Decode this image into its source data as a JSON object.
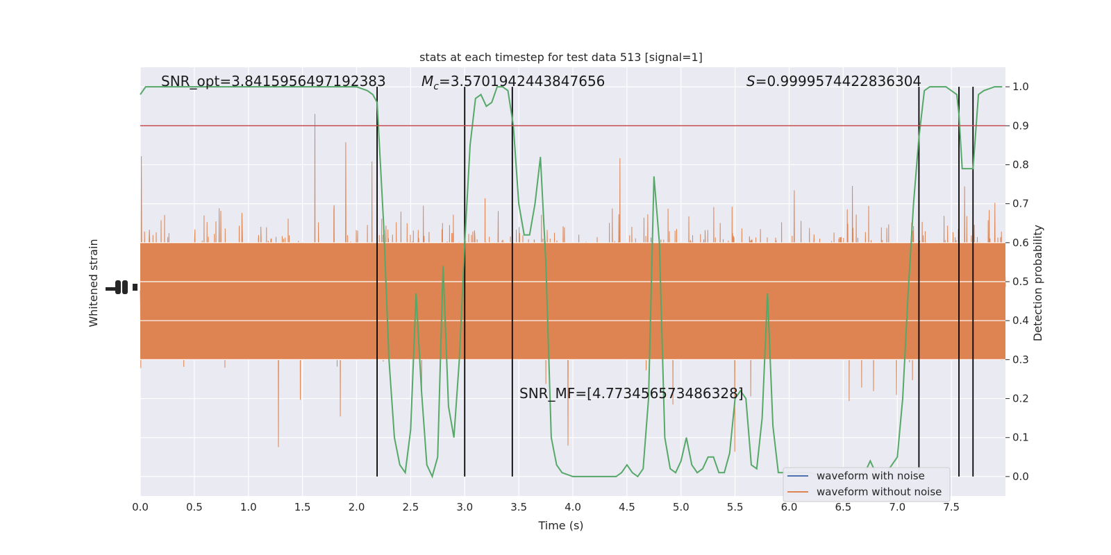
{
  "chart_data": {
    "type": "line",
    "title": "stats at each timestep for test data 513 [signal=1]",
    "xlabel": "Time (s)",
    "ylabel_left": "Whitened strain",
    "ylabel_right": "Detection probability",
    "xlim": [
      0,
      8
    ],
    "ylim_right": [
      -0.05,
      1.05
    ],
    "x_ticks": [
      0.0,
      0.5,
      1.0,
      1.5,
      2.0,
      2.5,
      3.0,
      3.5,
      4.0,
      4.5,
      5.0,
      5.5,
      6.0,
      6.5,
      7.0,
      7.5
    ],
    "x_tick_labels": [
      "0.0",
      "0.5",
      "1.0",
      "1.5",
      "2.0",
      "2.5",
      "3.0",
      "3.5",
      "4.0",
      "4.5",
      "5.0",
      "5.5",
      "6.0",
      "6.5",
      "7.0",
      "7.5"
    ],
    "y_right_ticks": [
      0.0,
      0.1,
      0.2,
      0.3,
      0.4,
      0.5,
      0.6,
      0.7,
      0.8,
      0.9,
      1.0
    ],
    "y_right_tick_labels": [
      "0.0",
      "0.1",
      "0.2",
      "0.3",
      "0.4",
      "0.5",
      "0.6",
      "0.7",
      "0.8",
      "0.9",
      "1.0"
    ],
    "threshold": 0.9,
    "vertical_lines": [
      2.19,
      3.0,
      3.44,
      7.2,
      7.57,
      7.7
    ],
    "annotations": {
      "snr_opt": "SNR_opt=3.8415956497192383",
      "mc_prefix": "M",
      "mc_sub": "c",
      "mc_value": "=3.5701942443847656",
      "s_symbol": "S",
      "s_value": "=0.9999574422836304",
      "snr_mf": "SNR_MF=[4.773456573486328]"
    },
    "series": [
      {
        "name": "waveform with noise",
        "color": "#4c72b0"
      },
      {
        "name": "waveform without noise",
        "color": "#dd8452"
      }
    ],
    "probability": {
      "color": "#55a868",
      "x": [
        0.0,
        0.05,
        0.1,
        0.2,
        0.4,
        0.6,
        0.8,
        1.0,
        1.2,
        1.4,
        1.6,
        1.8,
        2.0,
        2.1,
        2.15,
        2.19,
        2.25,
        2.3,
        2.35,
        2.4,
        2.45,
        2.5,
        2.55,
        2.6,
        2.65,
        2.7,
        2.75,
        2.8,
        2.85,
        2.9,
        2.95,
        3.0,
        3.05,
        3.1,
        3.15,
        3.2,
        3.25,
        3.3,
        3.35,
        3.4,
        3.45,
        3.5,
        3.55,
        3.6,
        3.65,
        3.7,
        3.75,
        3.8,
        3.85,
        3.9,
        4.0,
        4.1,
        4.2,
        4.3,
        4.4,
        4.45,
        4.5,
        4.55,
        4.6,
        4.65,
        4.7,
        4.75,
        4.8,
        4.85,
        4.9,
        4.95,
        5.0,
        5.05,
        5.1,
        5.15,
        5.2,
        5.25,
        5.3,
        5.35,
        5.4,
        5.45,
        5.5,
        5.55,
        5.6,
        5.65,
        5.7,
        5.75,
        5.8,
        5.85,
        5.9,
        5.95,
        6.0,
        6.1,
        6.2,
        6.3,
        6.4,
        6.5,
        6.6,
        6.7,
        6.75,
        6.8,
        6.85,
        6.9,
        6.95,
        7.0,
        7.05,
        7.1,
        7.15,
        7.2,
        7.25,
        7.3,
        7.35,
        7.4,
        7.45,
        7.5,
        7.55,
        7.57,
        7.6,
        7.65,
        7.7,
        7.75,
        7.8,
        7.9,
        7.97
      ],
      "y": [
        0.98,
        1.0,
        1.0,
        1.0,
        1.0,
        1.0,
        1.0,
        1.0,
        1.0,
        1.0,
        1.0,
        1.0,
        1.0,
        0.99,
        0.98,
        0.96,
        0.65,
        0.3,
        0.1,
        0.03,
        0.01,
        0.12,
        0.47,
        0.22,
        0.03,
        0.0,
        0.05,
        0.54,
        0.18,
        0.1,
        0.3,
        0.6,
        0.85,
        0.97,
        0.98,
        0.95,
        0.96,
        1.0,
        1.0,
        0.99,
        0.9,
        0.7,
        0.62,
        0.62,
        0.7,
        0.82,
        0.55,
        0.1,
        0.03,
        0.01,
        0.0,
        0.0,
        0.0,
        0.0,
        0.0,
        0.01,
        0.03,
        0.01,
        0.0,
        0.02,
        0.2,
        0.77,
        0.6,
        0.1,
        0.02,
        0.01,
        0.04,
        0.1,
        0.03,
        0.01,
        0.02,
        0.05,
        0.05,
        0.01,
        0.01,
        0.06,
        0.2,
        0.22,
        0.2,
        0.03,
        0.02,
        0.15,
        0.47,
        0.13,
        0.01,
        0.01,
        0.01,
        0.01,
        0.01,
        0.0,
        0.0,
        0.0,
        0.0,
        0.01,
        0.04,
        0.01,
        0.0,
        0.01,
        0.03,
        0.05,
        0.2,
        0.47,
        0.7,
        0.87,
        0.99,
        1.0,
        1.0,
        1.0,
        1.0,
        0.99,
        0.98,
        0.93,
        0.79,
        0.79,
        0.79,
        0.98,
        0.99,
        1.0,
        1.0
      ]
    },
    "legend_placement": "lower-right",
    "grid": true
  }
}
